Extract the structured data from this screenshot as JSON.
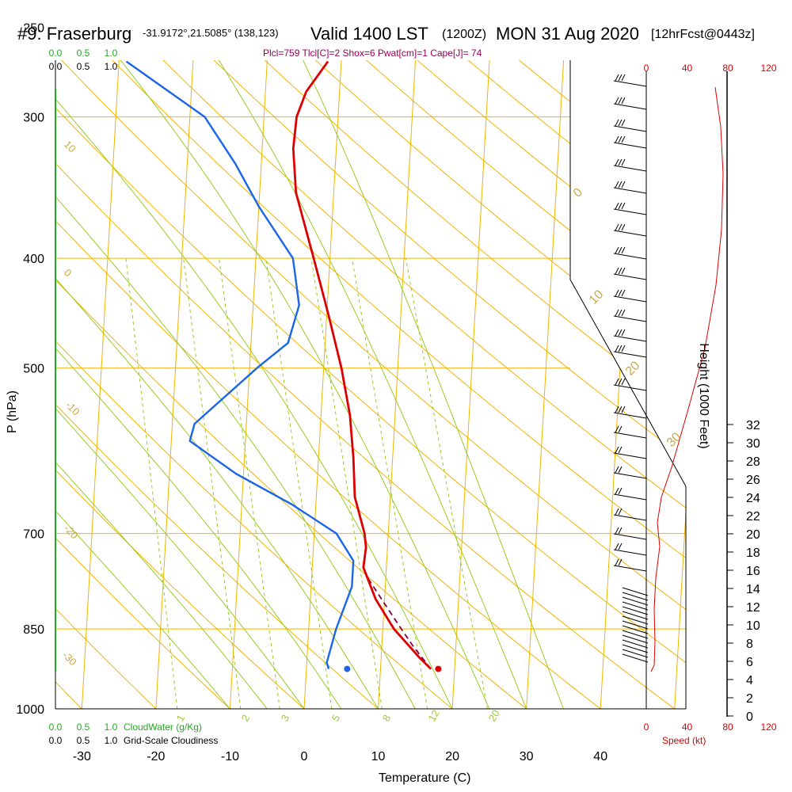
{
  "header": {
    "station": "#9: Fraserburg",
    "coords": "-31.9172°,21.5085° (138,123)",
    "valid": "Valid 1400 LST",
    "zulu": "(1200Z)",
    "date": "MON 31 Aug 2020",
    "forecast": "[12hrFcst@0443z]"
  },
  "stats_line": "Plcl=759 Tlcl[C]=2 Shox=6 Pwat[cm]=1 Cape[J]= 74",
  "colors": {
    "temperature": "#dd0000",
    "dewpoint": "#1a66e6",
    "isotherm": "#f0b400",
    "dry_adiabat": "#f0b400",
    "moist_adiabat": "#99cc22",
    "mixing_ratio": "#99cc22",
    "parcel": "#800040",
    "cloudwater": "#22aa22",
    "speed": "#dd0000"
  },
  "chart_data": {
    "type": "line",
    "xlabel": "Temperature (C)",
    "ylabel": "P (hPa)",
    "right_label": "Height (1000 Feet)",
    "x_ticks": [
      "-30",
      "-20",
      "-10",
      "0",
      "10",
      "20",
      "30",
      "40"
    ],
    "pressure_ticks": [
      "250",
      "300",
      "400",
      "500",
      "700",
      "850",
      "1000"
    ],
    "height_ticks": [
      "0",
      "2",
      "4",
      "6",
      "8",
      "10",
      "12",
      "14",
      "16",
      "18",
      "20",
      "22",
      "24",
      "26",
      "28",
      "30",
      "32"
    ],
    "cloudwater_label": "CloudWater (g/Kg)",
    "cloudwater_scale": [
      "0.0",
      "0.5",
      "1.0"
    ],
    "cloudiness_label": "Grid-Scale Cloudiness",
    "cloudiness_scale": [
      "0.0",
      "0.5",
      "1.0"
    ],
    "speed_label": "Speed (kt)",
    "speed_ticks": [
      "0",
      "40",
      "80",
      "120"
    ],
    "dry_adiabat_labels": [
      "10",
      "0",
      "-10",
      "-20",
      "-30"
    ],
    "isotherm_labels_right": [
      "0",
      "10",
      "20",
      "30"
    ],
    "mixing_ratio_labels": [
      "1",
      "2",
      "3",
      "5",
      "8",
      "12",
      "20"
    ],
    "temperature": [
      {
        "p": 268,
        "t": -1.8
      },
      {
        "p": 285,
        "t": -4.5
      },
      {
        "p": 300,
        "t": -5.6
      },
      {
        "p": 320,
        "t": -5.8
      },
      {
        "p": 350,
        "t": -5.1
      },
      {
        "p": 400,
        "t": -2.2
      },
      {
        "p": 450,
        "t": 0.3
      },
      {
        "p": 500,
        "t": 2.4
      },
      {
        "p": 550,
        "t": 3.9
      },
      {
        "p": 600,
        "t": 4.7
      },
      {
        "p": 650,
        "t": 5.2
      },
      {
        "p": 700,
        "t": 6.8
      },
      {
        "p": 720,
        "t": 7.1
      },
      {
        "p": 750,
        "t": 6.9
      },
      {
        "p": 800,
        "t": 8.8
      },
      {
        "p": 850,
        "t": 11.5
      },
      {
        "p": 900,
        "t": 15.1
      },
      {
        "p": 922,
        "t": 16.8
      }
    ],
    "dewpoint": [
      {
        "p": 268,
        "t": -29.0
      },
      {
        "p": 300,
        "t": -18.0
      },
      {
        "p": 330,
        "t": -13.5
      },
      {
        "p": 360,
        "t": -10.0
      },
      {
        "p": 400,
        "t": -5.0
      },
      {
        "p": 440,
        "t": -3.8
      },
      {
        "p": 475,
        "t": -5.0
      },
      {
        "p": 500,
        "t": -9.0
      },
      {
        "p": 560,
        "t": -17.0
      },
      {
        "p": 580,
        "t": -17.5
      },
      {
        "p": 620,
        "t": -11.0
      },
      {
        "p": 660,
        "t": -3.2
      },
      {
        "p": 700,
        "t": 3.0
      },
      {
        "p": 740,
        "t": 5.5
      },
      {
        "p": 780,
        "t": 5.5
      },
      {
        "p": 850,
        "t": 3.7
      },
      {
        "p": 910,
        "t": 2.7
      },
      {
        "p": 922,
        "t": 3.0
      }
    ],
    "parcel": [
      {
        "p": 922,
        "t": 16.8
      },
      {
        "p": 880,
        "t": 14.2
      },
      {
        "p": 850,
        "t": 12.5
      },
      {
        "p": 800,
        "t": 9.6
      },
      {
        "p": 770,
        "t": 7.8
      },
      {
        "p": 759,
        "t": 7.2
      }
    ],
    "surface_temp": {
      "p": 922,
      "t": 17.8
    },
    "surface_dewpoint": {
      "p": 922,
      "t": 5.5
    }
  }
}
